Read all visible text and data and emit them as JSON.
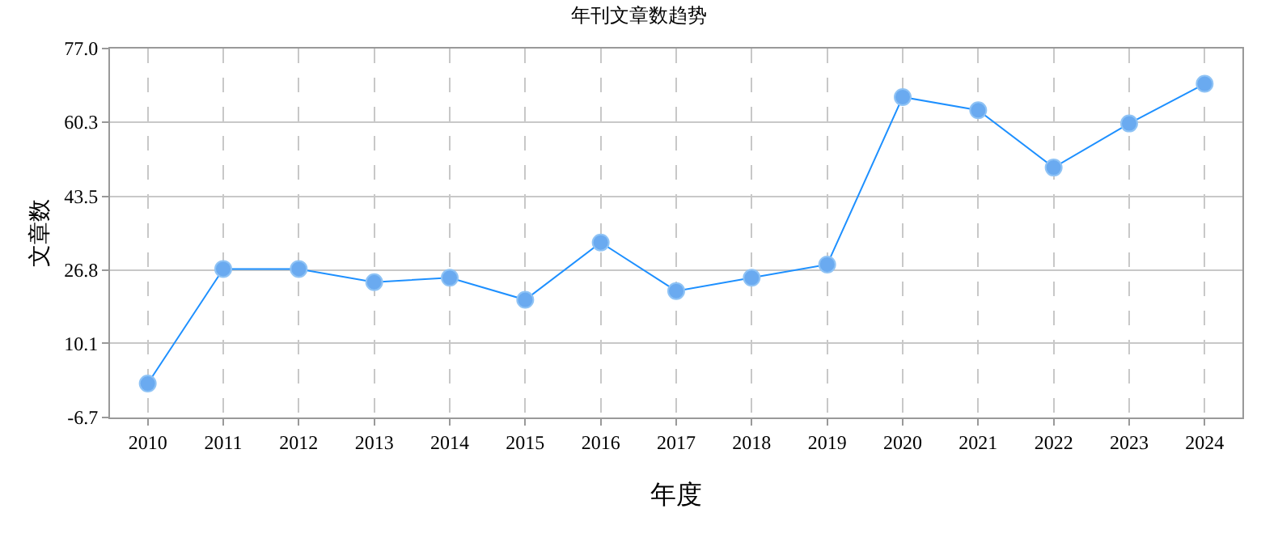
{
  "chart_data": {
    "type": "line",
    "title": "年刊文章数趋势",
    "xlabel": "年度",
    "ylabel": "文章数",
    "categories": [
      "2010",
      "2011",
      "2012",
      "2013",
      "2014",
      "2015",
      "2016",
      "2017",
      "2018",
      "2019",
      "2020",
      "2021",
      "2022",
      "2023",
      "2024"
    ],
    "series": [
      {
        "color": "#1e90ff",
        "values": [
          1,
          27,
          27,
          24,
          25,
          20,
          33,
          22,
          25,
          28,
          66,
          63,
          50,
          60,
          69
        ]
      }
    ],
    "ylim": [
      -6.7,
      77.0
    ],
    "yticks": [
      {
        "value": -6.7,
        "label": "-6.7"
      },
      {
        "value": 10.1,
        "label": "10.1"
      },
      {
        "value": 26.8,
        "label": "26.8"
      },
      {
        "value": 43.5,
        "label": "43.5"
      },
      {
        "value": 60.3,
        "label": "60.3"
      },
      {
        "value": 77.0,
        "label": "77.0"
      }
    ],
    "grid": true,
    "marker": "circle",
    "line_style": "solid"
  }
}
